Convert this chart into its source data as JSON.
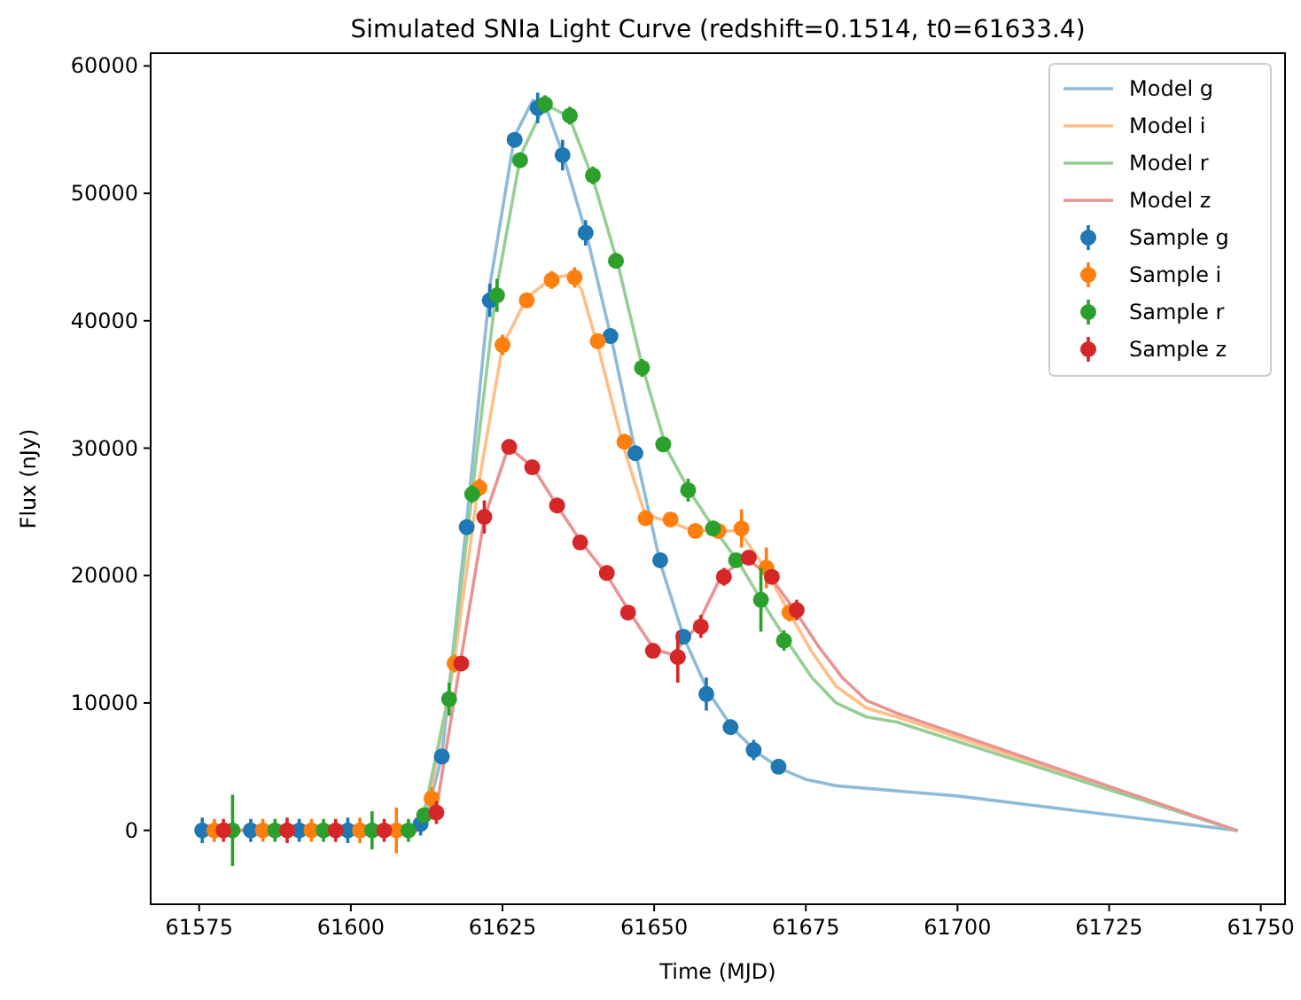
{
  "chart_data": {
    "type": "line",
    "title": "Simulated SNIa Light Curve (redshift=0.1514, t0=61633.4)",
    "xlabel": "Time (MJD)",
    "ylabel": "Flux (nJy)",
    "xlim": [
      61567,
      61754
    ],
    "ylim": [
      -5800,
      61000
    ],
    "xticks": [
      61575,
      61600,
      61625,
      61650,
      61675,
      61700,
      61725,
      61750
    ],
    "yticks": [
      0,
      10000,
      20000,
      30000,
      40000,
      50000,
      60000
    ],
    "legend": "top right",
    "grid": false,
    "series": [
      {
        "name": "Model g",
        "color": "#8fbbd9",
        "marker": "none",
        "x": [
          61575,
          61610,
          61612,
          61615,
          61619,
          61623,
          61627,
          61630,
          61632,
          61635,
          61639,
          61643,
          61647,
          61651,
          61655,
          61659,
          61663,
          61667,
          61671,
          61675,
          61680,
          61700,
          61746
        ],
        "values": [
          0,
          0,
          300,
          5800,
          23800,
          43000,
          54500,
          57300,
          57000,
          53000,
          46500,
          38500,
          29500,
          21000,
          15000,
          10800,
          8000,
          6100,
          4800,
          4000,
          3500,
          2700,
          0
        ]
      },
      {
        "name": "Model i",
        "color": "#ffbf86",
        "marker": "none",
        "x": [
          61575,
          61610,
          61613,
          61617,
          61621,
          61625,
          61629,
          61633,
          61636,
          61638,
          61641,
          61645,
          61648.5,
          61652,
          61656,
          61660,
          61664,
          61668,
          61672,
          61676,
          61680,
          61685,
          61690,
          61746
        ],
        "values": [
          0,
          0,
          2500,
          13100,
          27000,
          38000,
          41800,
          43300,
          43600,
          42500,
          37500,
          30000,
          24800,
          24300,
          23600,
          23500,
          23500,
          20800,
          17300,
          14000,
          11300,
          9600,
          8900,
          0
        ]
      },
      {
        "name": "Model r",
        "color": "#95cf95",
        "marker": "none",
        "x": [
          61575,
          61610,
          61612,
          61616,
          61620,
          61624,
          61628,
          61632,
          61636,
          61640,
          61644,
          61648,
          61652,
          61656,
          61660,
          61664,
          61668,
          61672,
          61676,
          61680,
          61685,
          61690,
          61746
        ],
        "values": [
          0,
          0,
          1200,
          10300,
          26500,
          42500,
          53000,
          57000,
          56000,
          51000,
          44500,
          36500,
          30000,
          26500,
          23600,
          21000,
          17800,
          14800,
          12000,
          10000,
          8900,
          8500,
          0
        ]
      },
      {
        "name": "Model z",
        "color": "#ea9393",
        "marker": "none",
        "x": [
          61575,
          61611,
          61614,
          61618,
          61622,
          61626,
          61630,
          61634,
          61638,
          61642,
          61646,
          61650,
          61653,
          61657,
          61661,
          61665,
          61669,
          61673,
          61677,
          61681,
          61685,
          61690,
          61746
        ],
        "values": [
          0,
          0,
          1400,
          13000,
          24500,
          30100,
          28500,
          25500,
          22600,
          20200,
          17100,
          14200,
          13800,
          16000,
          19900,
          21400,
          20000,
          17400,
          14500,
          12000,
          10200,
          9200,
          0
        ]
      },
      {
        "type": "scatter",
        "name": "Sample g",
        "color": "#1f77b4",
        "marker": "circle",
        "x": [
          61575.5,
          61583.5,
          61591.5,
          61599.5,
          61611.5,
          61615,
          61619.1,
          61622.9,
          61627,
          61630.8,
          61634.9,
          61638.7,
          61642.8,
          61646.9,
          61651,
          61654.8,
          61658.6,
          61662.6,
          61666.4,
          61670.5
        ],
        "values": [
          0,
          0,
          0,
          0,
          500,
          5800,
          23800,
          41600,
          54200,
          56700,
          53000,
          46900,
          38800,
          29600,
          21200,
          15200,
          10700,
          8100,
          6300,
          5000
        ],
        "errors": [
          1000,
          900,
          900,
          1000,
          900,
          500,
          600,
          1300,
          600,
          1200,
          1200,
          1000,
          500,
          600,
          600,
          500,
          1300,
          600,
          800,
          400
        ]
      },
      {
        "type": "scatter",
        "name": "Sample i",
        "color": "#ff7f0e",
        "marker": "circle",
        "x": [
          61577.5,
          61585.5,
          61593.5,
          61601.5,
          61607.5,
          61613.3,
          61617.1,
          61621.2,
          61625,
          61629,
          61633.1,
          61636.9,
          61640.7,
          61645.1,
          61648.6,
          61652.7,
          61656.8,
          61660.6,
          61664.4,
          61668.5,
          61672.3
        ],
        "values": [
          0,
          0,
          0,
          0,
          0,
          2500,
          13100,
          26900,
          38100,
          41600,
          43200,
          43400,
          38400,
          30500,
          24500,
          24400,
          23500,
          23500,
          23700,
          20600,
          17100
        ],
        "errors": [
          900,
          900,
          900,
          1000,
          1800,
          900,
          700,
          700,
          800,
          600,
          700,
          800,
          600,
          500,
          500,
          500,
          500,
          500,
          1500,
          1600,
          700
        ]
      },
      {
        "type": "scatter",
        "name": "Sample r",
        "color": "#2ca02c",
        "marker": "circle",
        "x": [
          61580.5,
          61587.5,
          61595.5,
          61603.5,
          61609.5,
          61612.1,
          61616.2,
          61620,
          61624.1,
          61627.9,
          61632,
          61636.1,
          61639.9,
          61643.7,
          61648,
          61651.5,
          61655.6,
          61659.7,
          61663.5,
          61667.6,
          61671.4
        ],
        "values": [
          0,
          0,
          0,
          0,
          0,
          1200,
          10300,
          26400,
          42000,
          52600,
          57000,
          56100,
          51400,
          44700,
          36300,
          30300,
          26700,
          23700,
          21200,
          18100,
          14900
        ],
        "errors": [
          2800,
          900,
          900,
          1500,
          900,
          500,
          1300,
          700,
          1300,
          600,
          700,
          700,
          700,
          600,
          700,
          500,
          900,
          500,
          500,
          2500,
          800
        ]
      },
      {
        "type": "scatter",
        "name": "Sample z",
        "color": "#d62728",
        "marker": "circle",
        "x": [
          61579,
          61589.5,
          61597.5,
          61605.5,
          61614.1,
          61618.2,
          61622,
          61626.1,
          61629.9,
          61634,
          61637.8,
          61642.2,
          61645.7,
          61649.8,
          61653.9,
          61657.7,
          61661.5,
          61665.6,
          61669.4,
          61673.5
        ],
        "values": [
          0,
          0,
          0,
          0,
          1400,
          13100,
          24600,
          30100,
          28500,
          25500,
          22600,
          20200,
          17100,
          14100,
          13600,
          16000,
          19900,
          21400,
          19900,
          17300
        ],
        "errors": [
          900,
          1000,
          900,
          900,
          900,
          500,
          1300,
          500,
          500,
          600,
          500,
          500,
          500,
          500,
          2000,
          900,
          700,
          500,
          500,
          800
        ]
      }
    ]
  }
}
